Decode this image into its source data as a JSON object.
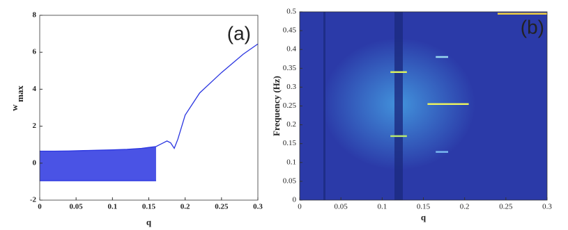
{
  "chart_data": [
    {
      "type": "bifurcation",
      "annotation": "(a)",
      "xlabel": "q",
      "ylabel": "w",
      "ylabel_subscript": "max",
      "xlim": [
        0,
        0.3
      ],
      "ylim": [
        -2,
        8
      ],
      "xticks": [
        0,
        0.05,
        0.1,
        0.15,
        0.2,
        0.25,
        0.3
      ],
      "yticks": [
        -2,
        0,
        2,
        4,
        6,
        8
      ],
      "x": [
        0,
        0.02,
        0.04,
        0.06,
        0.08,
        0.1,
        0.12,
        0.14,
        0.15,
        0.16,
        0.165,
        0.17,
        0.175,
        0.18,
        0.185,
        0.19,
        0.2,
        0.22,
        0.25,
        0.28,
        0.3
      ],
      "series": [
        {
          "color": "#2a35e0",
          "values": [
            0.65,
            0.65,
            0.66,
            0.68,
            0.7,
            0.72,
            0.75,
            0.8,
            0.85,
            0.9,
            null,
            null,
            null,
            null,
            null,
            null,
            null,
            null,
            null,
            null,
            null
          ]
        },
        {
          "color": "#2a35e0",
          "values": [
            -0.95,
            -0.95,
            -0.95,
            -0.95,
            -0.95,
            -0.95,
            -0.95,
            -0.95,
            -0.95,
            -0.95,
            null,
            null,
            null,
            null,
            null,
            null,
            null,
            null,
            null,
            null,
            null
          ]
        },
        {
          "color": "#2a35e0",
          "values": [
            null,
            null,
            null,
            null,
            null,
            null,
            null,
            null,
            null,
            0.9,
            1.0,
            1.1,
            1.2,
            1.1,
            0.8,
            1.3,
            2.6,
            3.8,
            4.9,
            5.9,
            6.45
          ]
        }
      ]
    },
    {
      "type": "spectrogram",
      "annotation": "(b)",
      "xlabel": "q",
      "ylabel": "Frequency (Hz)",
      "xlim": [
        0,
        0.3
      ],
      "ylim": [
        0,
        0.5
      ],
      "xticks": [
        0,
        0.05,
        0.1,
        0.15,
        0.2,
        0.25,
        0.3
      ],
      "yticks": [
        0,
        0.05,
        0.1,
        0.15,
        0.2,
        0.25,
        0.3,
        0.35,
        0.4,
        0.45,
        0.5
      ],
      "background": "#2b3aa8",
      "peaks": [
        {
          "x": [
            0.11,
            0.13
          ],
          "y": 0.34,
          "color": "#d8f060"
        },
        {
          "x": [
            0.11,
            0.13
          ],
          "y": 0.17,
          "color": "#b8e870"
        },
        {
          "x": [
            0.155,
            0.205
          ],
          "y": 0.255,
          "color": "#e8f060"
        },
        {
          "x": [
            0.165,
            0.18
          ],
          "y": 0.38,
          "color": "#9ad8f0"
        },
        {
          "x": [
            0.165,
            0.18
          ],
          "y": 0.128,
          "color": "#7ab8f0"
        },
        {
          "x": [
            0.24,
            0.3
          ],
          "y": 0.495,
          "color": "#f0d040"
        }
      ]
    }
  ]
}
